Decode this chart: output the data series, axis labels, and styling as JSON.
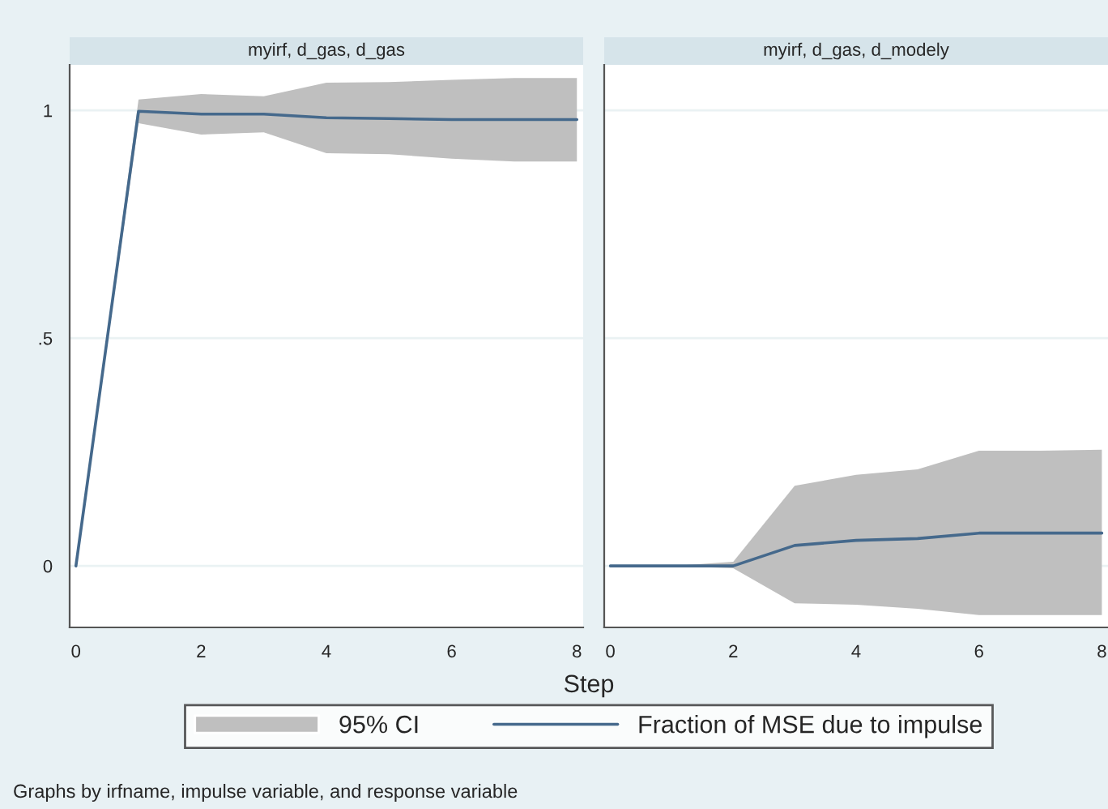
{
  "chart_data": [
    {
      "type": "line",
      "title": "myirf, d_gas, d_gas",
      "x": [
        0,
        1,
        2,
        3,
        4,
        5,
        6,
        7,
        8
      ],
      "xlim": [
        -0.1,
        8.1
      ],
      "xticks": [
        0,
        2,
        4,
        6,
        8
      ],
      "ylim": [
        -0.135,
        1.1
      ],
      "yticks": [
        {
          "value": 0,
          "label": "0"
        },
        {
          "value": 0.5,
          "label": ".5"
        },
        {
          "value": 1,
          "label": "1"
        }
      ],
      "grid": "y",
      "legend": "bottom",
      "xlabel": "Step",
      "annotations": [
        "95% CI",
        "Graphs by irfname, impulse variable, and response variable"
      ],
      "series": [
        {
          "name": "Fraction of MSE due to impulse",
          "color": "#45698c",
          "values": [
            0,
            0.998,
            0.992,
            0.992,
            0.984,
            0.982,
            0.98,
            0.98,
            0.98
          ],
          "lower": [
            0,
            0.972,
            0.947,
            0.952,
            0.906,
            0.904,
            0.894,
            0.888,
            0.888
          ],
          "upper": [
            0,
            1.024,
            1.036,
            1.031,
            1.061,
            1.062,
            1.067,
            1.071,
            1.071
          ]
        }
      ]
    },
    {
      "type": "line",
      "title": "myirf, d_gas, d_modely",
      "x": [
        0,
        1,
        2,
        3,
        4,
        5,
        6,
        7,
        8
      ],
      "xlim": [
        -0.1,
        8.1
      ],
      "xticks": [
        0,
        2,
        4,
        6,
        8
      ],
      "ylim": [
        -0.135,
        1.1
      ],
      "yticks": [
        {
          "value": 0,
          "label": null
        },
        {
          "value": 0.5,
          "label": null
        },
        {
          "value": 1,
          "label": null
        }
      ],
      "grid": "y",
      "tick_labels": "x",
      "series": [
        {
          "color": "#45698c",
          "values": [
            0,
            0,
            0,
            0.045,
            0.056,
            0.06,
            0.072,
            0.072,
            0.072
          ],
          "lower": [
            0,
            0,
            -0.005,
            -0.082,
            -0.085,
            -0.094,
            -0.108,
            -0.108,
            -0.108
          ],
          "upper": [
            0,
            0,
            0.009,
            0.176,
            0.2,
            0.212,
            0.253,
            0.253,
            0.255
          ]
        }
      ]
    }
  ]
}
